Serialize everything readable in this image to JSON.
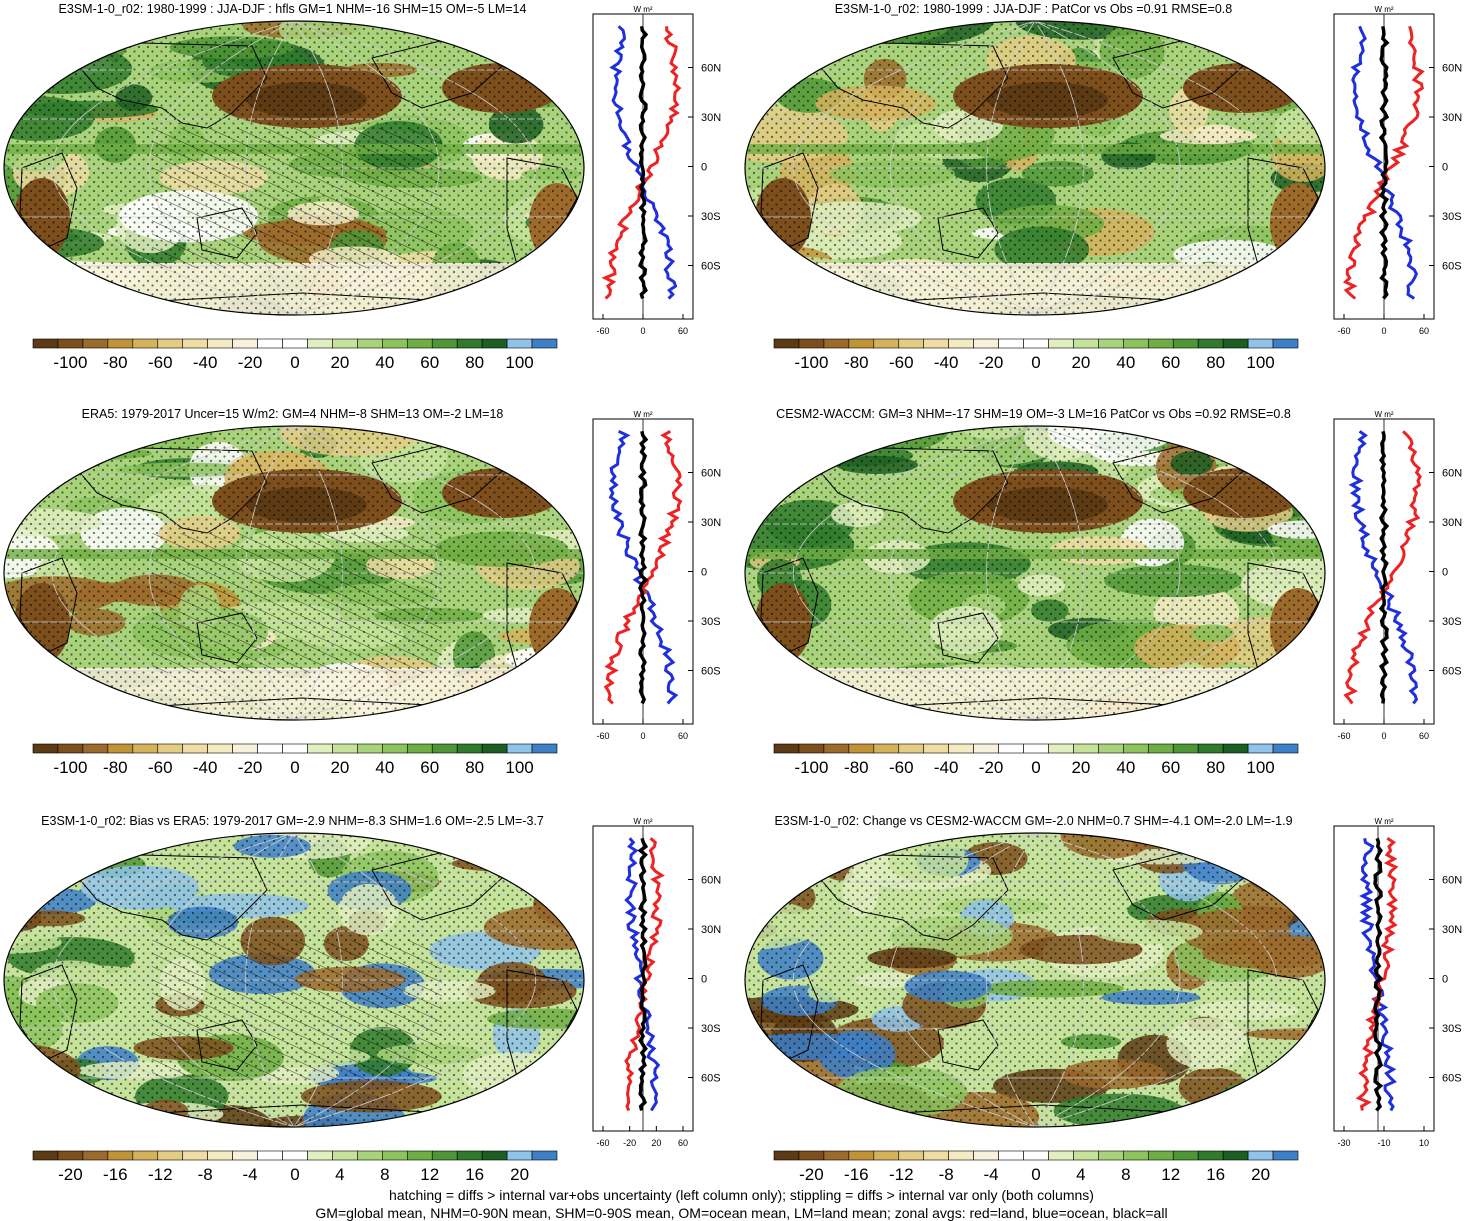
{
  "panels": [
    {
      "id": "p1",
      "title": "E3SM-1-0_r02: 1980-1999 : JJA-DJF : hfls GM=1 NHM=-16 SHM=15 OM=-5 LM=14",
      "hatching": true,
      "colorbar": {
        "ticks": [
          "-100",
          "-80",
          "-60",
          "-40",
          "-20",
          "0",
          "20",
          "40",
          "60",
          "80",
          "100"
        ]
      },
      "zonal": {
        "xticks": [
          "-60",
          "0",
          "60"
        ],
        "lat_ticks": [
          "60N",
          "30N",
          "0",
          "30S",
          "60S"
        ],
        "units": "W m²",
        "variant": 0
      }
    },
    {
      "id": "p2",
      "title": "E3SM-1-0_r02: 1980-1999 : JJA-DJF : PatCor vs Obs =0.91 RMSE=0.8",
      "hatching": false,
      "colorbar": {
        "ticks": [
          "-100",
          "-80",
          "-60",
          "-40",
          "-20",
          "0",
          "20",
          "40",
          "60",
          "80",
          "100"
        ]
      },
      "zonal": {
        "xticks": [
          "-60",
          "0",
          "60"
        ],
        "lat_ticks": [
          "60N",
          "30N",
          "0",
          "30S",
          "60S"
        ],
        "units": "W m²",
        "variant": 0
      }
    },
    {
      "id": "p3",
      "title": "ERA5: 1979-2017 Uncer=15 W/m2: GM=4 NHM=-8 SHM=13 OM=-2 LM=18",
      "hatching": true,
      "colorbar": {
        "ticks": [
          "-100",
          "-80",
          "-60",
          "-40",
          "-20",
          "0",
          "20",
          "40",
          "60",
          "80",
          "100"
        ]
      },
      "zonal": {
        "xticks": [
          "-60",
          "0",
          "60"
        ],
        "lat_ticks": [
          "60N",
          "30N",
          "0",
          "30S",
          "60S"
        ],
        "units": "W m²",
        "variant": 1
      }
    },
    {
      "id": "p4",
      "title": "CESM2-WACCM: GM=3 NHM=-17 SHM=19 OM=-3 LM=16 PatCor vs Obs =0.92 RMSE=0.8",
      "hatching": false,
      "colorbar": {
        "ticks": [
          "-100",
          "-80",
          "-60",
          "-40",
          "-20",
          "0",
          "20",
          "40",
          "60",
          "80",
          "100"
        ]
      },
      "zonal": {
        "xticks": [
          "-60",
          "0",
          "60"
        ],
        "lat_ticks": [
          "60N",
          "30N",
          "0",
          "30S",
          "60S"
        ],
        "units": "W m²",
        "variant": 1
      }
    },
    {
      "id": "p5",
      "title": "E3SM-1-0_r02: Bias vs ERA5: 1979-2017 GM=-2.9 NHM=-8.3 SHM=1.6 OM=-2.5 LM=-3.7",
      "hatching": true,
      "colorbar": {
        "ticks": [
          "-20",
          "-16",
          "-12",
          "-8",
          "-4",
          "0",
          "4",
          "8",
          "12",
          "16",
          "20"
        ]
      },
      "zonal": {
        "xticks": [
          "-60",
          "-20",
          "20",
          "60"
        ],
        "lat_ticks": [
          "60N",
          "30N",
          "0",
          "30S",
          "60S"
        ],
        "units": "W m²",
        "variant": 2
      }
    },
    {
      "id": "p6",
      "title": "E3SM-1-0_r02: Change vs CESM2-WACCM GM=-2.0 NHM=0.7 SHM=-4.1 OM=-2.0 LM=-1.9",
      "hatching": false,
      "colorbar": {
        "ticks": [
          "-20",
          "-16",
          "-12",
          "-8",
          "-4",
          "0",
          "4",
          "8",
          "12",
          "16",
          "20"
        ]
      },
      "zonal": {
        "xticks": [
          "-30",
          "-10",
          "10"
        ],
        "lat_ticks": [
          "60N",
          "30N",
          "0",
          "30S",
          "60S"
        ],
        "units": "W m²",
        "variant": 3
      }
    }
  ],
  "palette": [
    "#5c3a14",
    "#7d4f1c",
    "#9c6a2b",
    "#bf9336",
    "#d5b25c",
    "#e4cc85",
    "#efdda3",
    "#f5ebc3",
    "#f8f2dc",
    "#ffffff",
    "#ffffff",
    "#e1efc0",
    "#c5e39a",
    "#a8d37a",
    "#8cc35d",
    "#6fae44",
    "#4f9636",
    "#2f7a2c",
    "#1d5e22",
    "#8fc3e9",
    "#3d7fc8"
  ],
  "legend_colors": {
    "land": "#ee2222",
    "ocean": "#1f2fdd",
    "all": "#000000"
  },
  "footer": [
    "hatching = diffs > internal var+obs uncertainty (left column only); stippling = diffs > internal var only (both columns)",
    "GM=global mean, NHM=0-90N mean, SHM=0-90S mean, OM=ocean mean, LM=land mean; zonal avgs: red=land, blue=ocean, black=all"
  ]
}
